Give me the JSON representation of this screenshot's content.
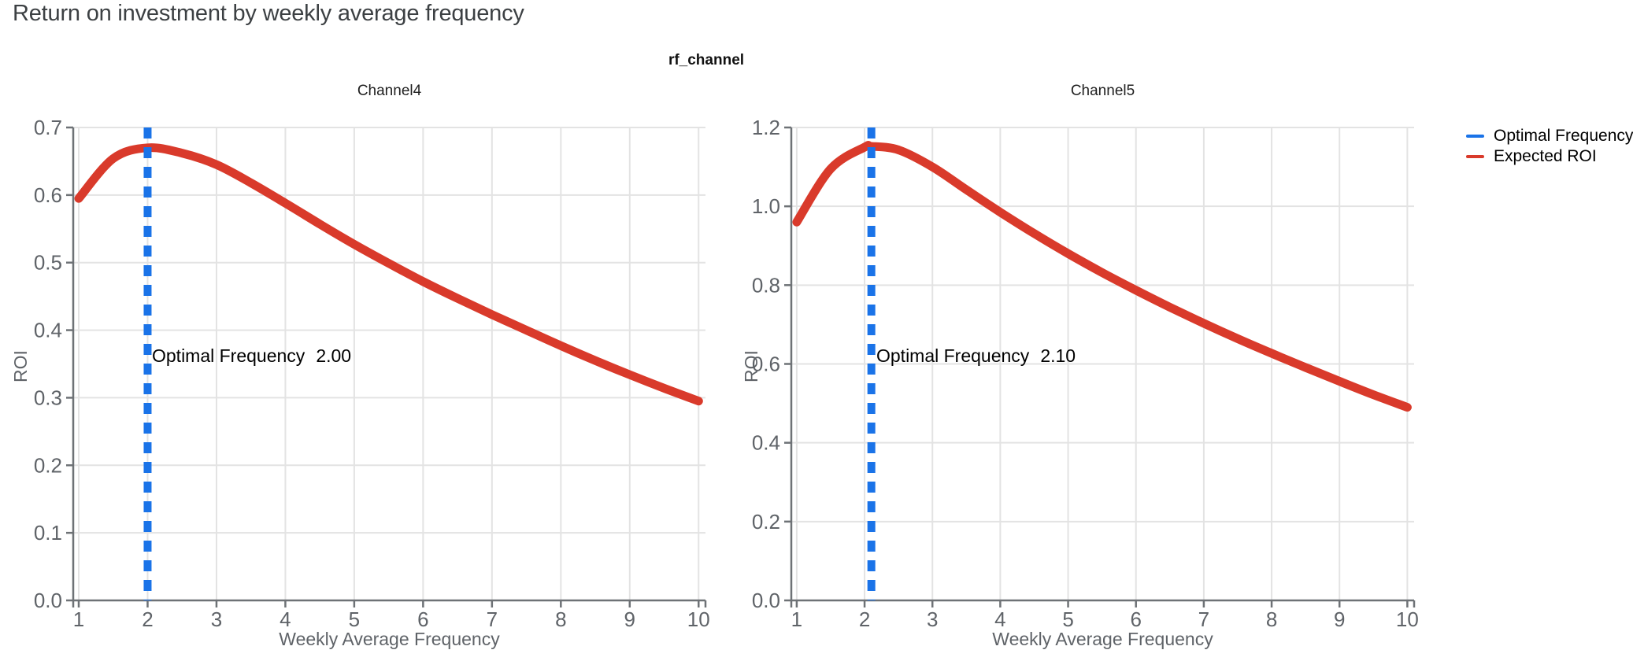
{
  "header": {
    "title": "Return on investment by weekly average frequency",
    "facet_title": "rf_channel"
  },
  "legend": {
    "position": "right",
    "items": [
      {
        "label": "Optimal Frequency",
        "color": "#1a73e8",
        "style": "solid-line"
      },
      {
        "label": "Expected ROI",
        "color": "#d93a2b",
        "style": "solid-line"
      }
    ]
  },
  "colors": {
    "curve": "#d93a2b",
    "optimal_line": "#1a73e8",
    "grid": "#e3e3e3",
    "axis": "#6e7276",
    "tick_text": "#5f6368"
  },
  "chart_data": [
    {
      "type": "line",
      "title": "Channel4",
      "xlabel": "Weekly Average Frequency",
      "ylabel": "ROI",
      "xlim": [
        0.92,
        10.1
      ],
      "ylim": [
        0,
        0.7
      ],
      "x_ticks": [
        1,
        2,
        3,
        4,
        5,
        6,
        7,
        8,
        9,
        10
      ],
      "y_ticks": [
        "0.0",
        "0.1",
        "0.2",
        "0.3",
        "0.4",
        "0.5",
        "0.6",
        "0.7"
      ],
      "grid": true,
      "optimal_frequency": 2.0,
      "annotation": {
        "label": "Optimal Frequency",
        "value": "2.00"
      },
      "series": [
        {
          "name": "Expected ROI",
          "x": [
            1,
            1.5,
            2,
            2.5,
            3,
            3.5,
            4,
            4.5,
            5,
            5.5,
            6,
            6.5,
            7,
            7.5,
            8,
            8.5,
            9,
            9.5,
            10
          ],
          "y": [
            0.595,
            0.654,
            0.67,
            0.662,
            0.645,
            0.618,
            0.588,
            0.557,
            0.527,
            0.499,
            0.472,
            0.447,
            0.423,
            0.4,
            0.377,
            0.355,
            0.334,
            0.314,
            0.295
          ]
        }
      ]
    },
    {
      "type": "line",
      "title": "Channel5",
      "xlabel": "Weekly Average Frequency",
      "ylabel": "ROI",
      "xlim": [
        0.92,
        10.1
      ],
      "ylim": [
        0,
        1.2
      ],
      "x_ticks": [
        1,
        2,
        3,
        4,
        5,
        6,
        7,
        8,
        9,
        10
      ],
      "y_ticks": [
        "0.0",
        "0.2",
        "0.4",
        "0.6",
        "0.8",
        "1.0",
        "1.2"
      ],
      "grid": true,
      "optimal_frequency": 2.1,
      "annotation": {
        "label": "Optimal Frequency",
        "value": "2.10"
      },
      "series": [
        {
          "name": "Expected ROI",
          "x": [
            1,
            1.5,
            2,
            2.1,
            2.5,
            3,
            3.5,
            4,
            4.5,
            5,
            5.5,
            6,
            6.5,
            7,
            7.5,
            8,
            8.5,
            9,
            9.5,
            10
          ],
          "y": [
            0.96,
            1.095,
            1.15,
            1.152,
            1.143,
            1.1,
            1.042,
            0.985,
            0.931,
            0.88,
            0.832,
            0.787,
            0.744,
            0.703,
            0.664,
            0.627,
            0.591,
            0.556,
            0.522,
            0.49
          ]
        }
      ]
    }
  ]
}
